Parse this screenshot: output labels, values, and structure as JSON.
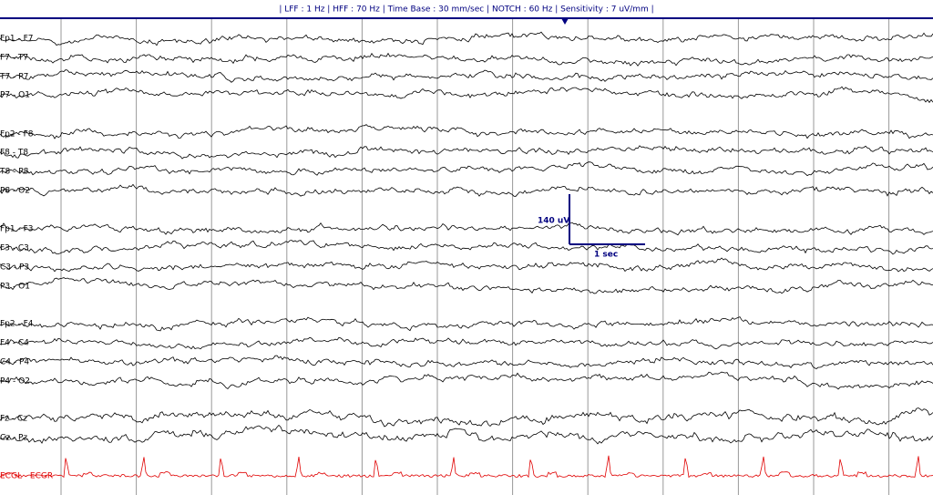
{
  "header": {
    "text": "|  LFF : 1 Hz  |  HFF : 70 Hz  |  Time Base  : 30 mm/sec  |  NOTCH : 60 Hz  |  Sensitivity : 7 uV/mm  |"
  },
  "channels": [
    {
      "label": "Fp1 - F7"
    },
    {
      "label": "F7 - T7"
    },
    {
      "label": "T7 - P7"
    },
    {
      "label": "P7 - O1"
    },
    {
      "label": "Fp2 - F8"
    },
    {
      "label": "F8 - T8"
    },
    {
      "label": "T8 - P8"
    },
    {
      "label": "P8 - O2"
    },
    {
      "label": "Fp1 - F3"
    },
    {
      "label": "F3 - C3"
    },
    {
      "label": "C3 - P3"
    },
    {
      "label": "P3 - O1"
    },
    {
      "label": "Fp2 - F4"
    },
    {
      "label": "F4 - C4"
    },
    {
      "label": "C4 - P4"
    },
    {
      "label": "P4 - O2"
    },
    {
      "label": "Fz - Cz"
    },
    {
      "label": "Cz - Pz"
    },
    {
      "label": "ECGL - ECGR"
    }
  ],
  "scale": {
    "amplitude": "140 uV",
    "time": "1 sec"
  }
}
